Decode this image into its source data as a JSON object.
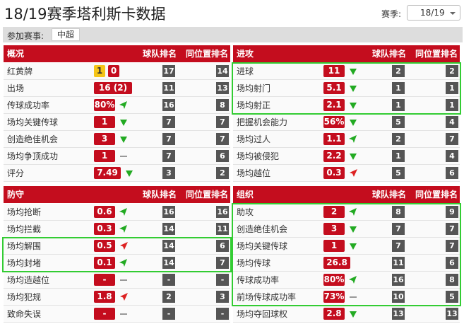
{
  "header": {
    "title": "18/19赛季塔利斯卡数据",
    "season_label": "赛季:",
    "season": "18/19"
  },
  "filter": {
    "label": "参加赛事:",
    "competition": "中超"
  },
  "panels": [
    {
      "title": "概况",
      "col_team": "球队排名",
      "col_pos": "同位置排名",
      "rows": [
        {
          "label": "红黄牌",
          "yellow": "1",
          "red": "0",
          "team": "17",
          "pos": "14"
        },
        {
          "label": "出场",
          "value": "16 (2)",
          "team": "11",
          "pos": "13"
        },
        {
          "label": "传球成功率",
          "value": "80%",
          "trend": "left",
          "team": "16",
          "pos": "8"
        },
        {
          "label": "场均关键传球",
          "value": "1",
          "trend": "down",
          "team": "7",
          "pos": "7"
        },
        {
          "label": "创造绝佳机会",
          "value": "3",
          "trend": "down",
          "team": "7",
          "pos": "7"
        },
        {
          "label": "场均争顶成功",
          "value": "1",
          "trend": "flat",
          "team": "7",
          "pos": "6"
        },
        {
          "label": "评分",
          "value": "7.49",
          "trend": "down",
          "team": "3",
          "pos": "2"
        }
      ]
    },
    {
      "title": "进攻",
      "col_team": "球队排名",
      "col_pos": "同位置排名",
      "highlight": [
        0,
        2
      ],
      "rows": [
        {
          "label": "进球",
          "value": "11",
          "trend": "down",
          "team": "2",
          "pos": "2"
        },
        {
          "label": "场均射门",
          "value": "5.1",
          "trend": "down",
          "team": "1",
          "pos": "1"
        },
        {
          "label": "场均射正",
          "value": "2.1",
          "trend": "down",
          "team": "1",
          "pos": "1"
        },
        {
          "label": "把握机会能力",
          "value": "56%",
          "trend": "down",
          "team": "5",
          "pos": "4"
        },
        {
          "label": "场均过人",
          "value": "1.1",
          "trend": "left",
          "team": "2",
          "pos": "7"
        },
        {
          "label": "场均被侵犯",
          "value": "2.2",
          "trend": "down",
          "team": "1",
          "pos": "4"
        },
        {
          "label": "场均越位",
          "value": "0.3",
          "trend": "red",
          "team": "5",
          "pos": "6"
        }
      ]
    },
    {
      "title": "防守",
      "col_team": "球队排名",
      "col_pos": "同位置排名",
      "highlight": [
        2,
        3
      ],
      "rows": [
        {
          "label": "场均抢断",
          "value": "0.6",
          "trend": "left",
          "team": "16",
          "pos": "16"
        },
        {
          "label": "场均拦截",
          "value": "0.3",
          "trend": "left",
          "team": "14",
          "pos": "11"
        },
        {
          "label": "场均解围",
          "value": "0.5",
          "trend": "red",
          "team": "14",
          "pos": "6"
        },
        {
          "label": "场均封堵",
          "value": "0.1",
          "trend": "left",
          "team": "14",
          "pos": "7"
        },
        {
          "label": "场均造越位",
          "value": "-",
          "trend": "flat",
          "team": "-",
          "pos": "-"
        },
        {
          "label": "场均犯规",
          "value": "1.8",
          "trend": "red",
          "team": "2",
          "pos": "3"
        },
        {
          "label": "致命失误",
          "value": "-",
          "trend": "flat",
          "team": "-",
          "pos": "-"
        }
      ]
    },
    {
      "title": "组织",
      "col_team": "球队排名",
      "col_pos": "同位置排名",
      "highlight": [
        0,
        5
      ],
      "rows": [
        {
          "label": "助攻",
          "value": "2",
          "trend": "left",
          "team": "8",
          "pos": "9"
        },
        {
          "label": "创造绝佳机会",
          "value": "3",
          "trend": "down",
          "team": "7",
          "pos": "7"
        },
        {
          "label": "场均关键传球",
          "value": "1",
          "trend": "down",
          "team": "7",
          "pos": "7"
        },
        {
          "label": "场均传球",
          "value": "26.8",
          "team": "11",
          "pos": "6"
        },
        {
          "label": "传球成功率",
          "value": "80%",
          "trend": "left",
          "team": "16",
          "pos": "8"
        },
        {
          "label": "前场传球成功率",
          "value": "73%",
          "trend": "flat",
          "team": "10",
          "pos": "5"
        },
        {
          "label": "场均夺回球权",
          "value": "2.8",
          "trend": "down",
          "team": "13",
          "pos": "13"
        }
      ]
    }
  ]
}
